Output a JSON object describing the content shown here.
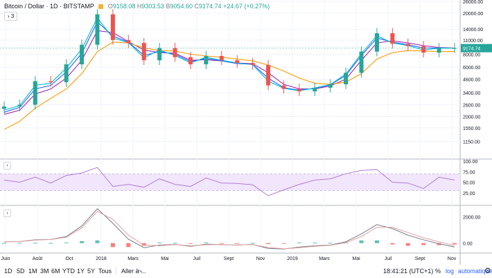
{
  "header": {
    "symbol": "Bitcoin / Dollar",
    "interval": "1D",
    "exchange": "BITSTAMP",
    "open_label": "O",
    "open": "9158.08",
    "high_label": "H",
    "high": "9303.53",
    "low_label": "B",
    "low": "9054.60",
    "close_label": "C",
    "close": "9174.74",
    "change": "+24.67 (+0.27%)",
    "collapse_label": "› 3"
  },
  "colors": {
    "up": "#26a69a",
    "down": "#ef5350",
    "ma_purple": "#9c27b0",
    "ma_orange": "#ff9800",
    "ma_blue": "#2962ff",
    "ma_teal": "#00bcd4",
    "rsi": "#b07cd6",
    "rsi_band": "#f1e6fb",
    "price_tag": "#26a69a"
  },
  "chart_data": [
    {
      "type": "candlestick",
      "pane": "price",
      "scale": "log",
      "ylim": [
        800,
        26000
      ],
      "y_ticks": [
        "26000.00",
        "20000.00",
        "14000.00",
        "11000.00",
        "8000.00",
        "6000.00",
        "4600.00",
        "3400.00",
        "2600.00",
        "2000.00",
        "1550.00",
        "1150.00"
      ],
      "last_price_label": "9174.74",
      "x_ticks": [
        "Juin",
        "Août",
        "Oct",
        "2018",
        "Mars",
        "Mai",
        "Juil",
        "Sept",
        "Nov",
        "2019",
        "Mars",
        "Mai",
        "Juil",
        "Sept",
        "Nov"
      ],
      "x": [
        "2017-06",
        "2017-07",
        "2017-08",
        "2017-09",
        "2017-10",
        "2017-11",
        "2017-12",
        "2018-01",
        "2018-02",
        "2018-03",
        "2018-04",
        "2018-05",
        "2018-06",
        "2018-07",
        "2018-08",
        "2018-09",
        "2018-10",
        "2018-11",
        "2018-12",
        "2019-01",
        "2019-02",
        "2019-03",
        "2019-04",
        "2019-05",
        "2019-06",
        "2019-07",
        "2019-08",
        "2019-09",
        "2019-10",
        "2019-11"
      ],
      "close": [
        2500,
        2600,
        4400,
        4300,
        6400,
        9900,
        19500,
        11000,
        10300,
        7000,
        9200,
        7500,
        6400,
        7700,
        7000,
        6600,
        6300,
        4000,
        3700,
        3500,
        3800,
        4100,
        5300,
        8500,
        12800,
        10100,
        9600,
        8300,
        9150,
        9175
      ],
      "series": [
        {
          "name": "",
          "values": [
            2100,
            2300,
            3300,
            3700,
            4700,
            7000,
            13500,
            13000,
            10600,
            8800,
            8300,
            8200,
            7000,
            7100,
            6900,
            6600,
            6500,
            5300,
            4100,
            3700,
            3700,
            3950,
            4600,
            7000,
            10300,
            10800,
            10300,
            9700,
            9300,
            9200
          ]
        },
        {
          "name": "",
          "values": [
            1500,
            1800,
            2400,
            3000,
            3700,
            5200,
            8500,
            10500,
            10300,
            9200,
            8700,
            8600,
            8000,
            7700,
            7500,
            7200,
            6900,
            6300,
            5500,
            4700,
            4200,
            4100,
            4300,
            5200,
            7200,
            8300,
            8700,
            8600,
            8500,
            8500
          ]
        },
        {
          "name": "",
          "values": [
            2200,
            2450,
            3700,
            4000,
            5400,
            8200,
            16500,
            12000,
            10500,
            7800,
            8500,
            8000,
            6800,
            7300,
            6900,
            6500,
            6400,
            4700,
            3800,
            3600,
            3750,
            4050,
            5000,
            7800,
            11500,
            10500,
            9900,
            9200,
            9200,
            9180
          ]
        },
        {
          "name": "",
          "values": [
            2300,
            2550,
            4000,
            4200,
            5900,
            9000,
            18000,
            11500,
            10400,
            7400,
            8800,
            7800,
            6600,
            7500,
            7000,
            6600,
            6350,
            4400,
            3750,
            3550,
            3780,
            4080,
            5150,
            8100,
            12100,
            10300,
            9700,
            8800,
            9170,
            9175
          ]
        }
      ]
    },
    {
      "type": "line",
      "pane": "rsi",
      "ylim": [
        0,
        100
      ],
      "y_ticks": [
        "100.00",
        "75.00",
        "50.00",
        "25.00"
      ],
      "band": [
        30,
        70
      ],
      "x": [
        "2017-06",
        "2017-07",
        "2017-08",
        "2017-09",
        "2017-10",
        "2017-11",
        "2017-12",
        "2018-01",
        "2018-02",
        "2018-03",
        "2018-04",
        "2018-05",
        "2018-06",
        "2018-07",
        "2018-08",
        "2018-09",
        "2018-10",
        "2018-11",
        "2018-12",
        "2019-01",
        "2019-02",
        "2019-03",
        "2019-04",
        "2019-05",
        "2019-06",
        "2019-07",
        "2019-08",
        "2019-09",
        "2019-10",
        "2019-11"
      ],
      "series": [
        {
          "name": "",
          "values": [
            55,
            50,
            62,
            48,
            66,
            72,
            85,
            40,
            45,
            38,
            58,
            45,
            40,
            60,
            48,
            47,
            44,
            18,
            32,
            45,
            55,
            58,
            70,
            78,
            80,
            50,
            48,
            35,
            62,
            55
          ]
        }
      ]
    },
    {
      "type": "line",
      "pane": "macd",
      "ylim": [
        -600,
        2700
      ],
      "y_ticks": [
        "2000.00",
        "0.00"
      ],
      "x": [
        "2017-06",
        "2017-07",
        "2017-08",
        "2017-09",
        "2017-10",
        "2017-11",
        "2017-12",
        "2018-01",
        "2018-02",
        "2018-03",
        "2018-04",
        "2018-05",
        "2018-06",
        "2018-07",
        "2018-08",
        "2018-09",
        "2018-10",
        "2018-11",
        "2018-12",
        "2019-01",
        "2019-02",
        "2019-03",
        "2019-04",
        "2019-05",
        "2019-06",
        "2019-07",
        "2019-08",
        "2019-09",
        "2019-10",
        "2019-11"
      ],
      "series": [
        {
          "name": "",
          "values": [
            100,
            120,
            250,
            280,
            500,
            1300,
            2600,
            1500,
            300,
            -350,
            -150,
            -100,
            -250,
            -80,
            -120,
            -150,
            -100,
            -400,
            -450,
            -300,
            -200,
            -150,
            100,
            700,
            1400,
            1100,
            600,
            250,
            -50,
            -300
          ]
        },
        {
          "name": "",
          "values": [
            90,
            110,
            220,
            270,
            450,
            1150,
            2400,
            1800,
            600,
            -150,
            -200,
            -120,
            -200,
            -130,
            -110,
            -140,
            -120,
            -330,
            -430,
            -350,
            -240,
            -170,
            30,
            500,
            1200,
            1200,
            800,
            400,
            100,
            -200
          ]
        }
      ],
      "histogram": [
        10,
        10,
        30,
        10,
        50,
        150,
        200,
        -300,
        -300,
        -200,
        50,
        20,
        -50,
        50,
        -10,
        -10,
        20,
        -70,
        -20,
        50,
        40,
        20,
        70,
        200,
        200,
        -100,
        -200,
        -150,
        -150,
        -100
      ]
    }
  ],
  "bottom_bar": {
    "timeframes": [
      "1D",
      "5D",
      "1M",
      "3M",
      "6M",
      "YTD",
      "1Y",
      "5Y",
      "Tous"
    ],
    "goto_label": "Aller à ...",
    "time": "18:41:21 (UTC+1)",
    "percent_label": "%",
    "log_label": "log",
    "auto_label": "automatique",
    "settings_icon": "gear-icon"
  }
}
